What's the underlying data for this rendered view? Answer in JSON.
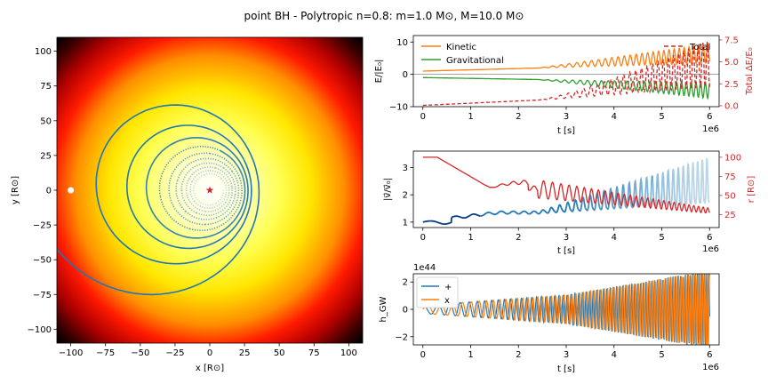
{
  "figure": {
    "title": "point BH - Polytropic n=0.8: m=1.0 M⊙, M=10.0 M⊙"
  },
  "chart_data": [
    {
      "panel": "orbit",
      "type": "scatter",
      "xlabel": "x [R⊙]",
      "ylabel": "y [R⊙]",
      "xlim": [
        -110,
        110
      ],
      "ylim": [
        -110,
        110
      ],
      "xticks": [
        "−100",
        "−75",
        "−50",
        "−25",
        "0",
        "25",
        "50",
        "75",
        "100"
      ],
      "yticks": [
        "100",
        "75",
        "50",
        "25",
        "0",
        "−25",
        "−50",
        "−75",
        "−100"
      ],
      "background": "radial density colormap (hot): white/yellow center, red, black edge",
      "start_point": {
        "x": -100,
        "y": 0,
        "color": "#ffffff"
      },
      "bh_marker": {
        "x": 0,
        "y": 0,
        "color": "#d62728",
        "symbol": "star"
      },
      "trajectory_color": "#1f77b4",
      "grid": false
    },
    {
      "panel": "energy",
      "type": "line",
      "xlabel": "t [s]",
      "ylabel": "E/|E₀|",
      "ylabel_right": "Total ΔE/E₀",
      "x_offset_label": "1e6",
      "xlim": [
        -0.2,
        6.2
      ],
      "ylim": [
        -10,
        12
      ],
      "ylim_right": [
        -0.1,
        8
      ],
      "xticks": [
        "0",
        "1",
        "2",
        "3",
        "4",
        "5",
        "6"
      ],
      "yticks": [
        "10",
        "0",
        "−10"
      ],
      "yticks_right": [
        "7.5",
        "5.0",
        "2.5",
        "0.0"
      ],
      "legend_placement": "top-left",
      "series": [
        {
          "name": "Kinetic",
          "color": "#ff7f0e"
        },
        {
          "name": "Gravitational",
          "color": "#2ca02c"
        },
        {
          "name": "Total",
          "color": "#d62728",
          "style": "dashed",
          "axis": "right"
        }
      ]
    },
    {
      "panel": "velocity",
      "type": "line",
      "xlabel": "t [s]",
      "ylabel": "|v⃗/v⃗₀|",
      "ylabel_right": "r [R⊙]",
      "x_offset_label": "1e6",
      "xlim": [
        -0.2,
        6.2
      ],
      "ylim": [
        0.8,
        3.6
      ],
      "ylim_right": [
        8,
        108
      ],
      "xticks": [
        "0",
        "1",
        "2",
        "3",
        "4",
        "5",
        "6"
      ],
      "yticks": [
        "3",
        "2",
        "1"
      ],
      "yticks_right": [
        "100",
        "75",
        "50",
        "25"
      ],
      "series": [
        {
          "color": "#1f77b4",
          "axis": "left"
        },
        {
          "color": "#d62728",
          "axis": "right"
        }
      ]
    },
    {
      "panel": "gw",
      "type": "line",
      "xlabel": "t [s]",
      "ylabel": "h_GW",
      "y_offset_label": "1e44",
      "x_offset_label": "1e6",
      "xlim": [
        -0.2,
        6.2
      ],
      "ylim": [
        -2.6,
        2.6
      ],
      "xticks": [
        "0",
        "1",
        "2",
        "3",
        "4",
        "5",
        "6"
      ],
      "yticks": [
        "2",
        "0",
        "−2"
      ],
      "legend_placement": "top-left",
      "series": [
        {
          "name": "+",
          "color": "#1f77b4"
        },
        {
          "name": "x",
          "color": "#ff7f0e"
        }
      ]
    }
  ]
}
